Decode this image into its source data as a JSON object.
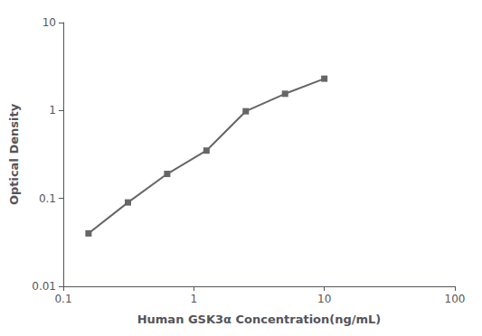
{
  "chart_data": {
    "type": "line",
    "x": [
      0.156,
      0.313,
      0.625,
      1.25,
      2.5,
      5.0,
      10.0
    ],
    "values": [
      0.04,
      0.09,
      0.19,
      0.35,
      0.98,
      1.55,
      2.3
    ],
    "xlabel": "Human GSK3α Concentration(ng/mL)",
    "ylabel": "Optical Density",
    "xlim": [
      0.1,
      100
    ],
    "ylim": [
      0.01,
      10
    ],
    "xticks": [
      0.1,
      1,
      10,
      100
    ],
    "yticks": [
      0.01,
      0.1,
      1,
      10
    ],
    "log": true,
    "grid": false,
    "color": "#666666",
    "marker": "square"
  }
}
